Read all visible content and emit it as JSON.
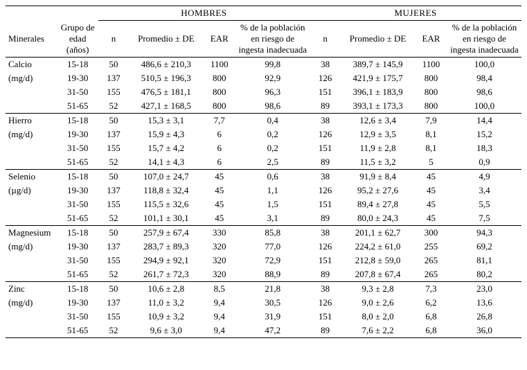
{
  "headers": {
    "mineral": "Minerales",
    "age_group": "Grupo de edad (años)",
    "men": "HOMBRES",
    "women": "MUJERES",
    "n": "n",
    "mean_sd": "Promedio ± DE",
    "ear": "EAR",
    "pct_risk": "% de la población en riesgo de ingesta inadecuada"
  },
  "minerals": [
    {
      "name": "Calcio",
      "unit": "(mg/d)",
      "rows": [
        {
          "age": "15-18",
          "m_n": "50",
          "m_mean": "486,6 ± 210,3",
          "m_ear": "1100",
          "m_pct": "99,8",
          "w_n": "38",
          "w_mean": "389,7 ± 145,9",
          "w_ear": "1100",
          "w_pct": "100,0"
        },
        {
          "age": "19-30",
          "m_n": "137",
          "m_mean": "510,5 ± 196,3",
          "m_ear": "800",
          "m_pct": "92,9",
          "w_n": "126",
          "w_mean": "421,9 ± 175,7",
          "w_ear": "800",
          "w_pct": "98,4"
        },
        {
          "age": "31-50",
          "m_n": "155",
          "m_mean": "476,5 ± 181,1",
          "m_ear": "800",
          "m_pct": "96,3",
          "w_n": "151",
          "w_mean": "396,1 ± 183,9",
          "w_ear": "800",
          "w_pct": "98,6"
        },
        {
          "age": "51-65",
          "m_n": "52",
          "m_mean": "427,1 ± 168,5",
          "m_ear": "800",
          "m_pct": "98,6",
          "w_n": "89",
          "w_mean": "393,1 ± 173,3",
          "w_ear": "800",
          "w_pct": "100,0"
        }
      ]
    },
    {
      "name": "Hierro",
      "unit": "(mg/d)",
      "rows": [
        {
          "age": "15-18",
          "m_n": "50",
          "m_mean": "15,3 ± 3,1",
          "m_ear": "7,7",
          "m_pct": "0,4",
          "w_n": "38",
          "w_mean": "12,6 ± 3,4",
          "w_ear": "7,9",
          "w_pct": "14,4"
        },
        {
          "age": "19-30",
          "m_n": "137",
          "m_mean": "15,9 ± 4,3",
          "m_ear": "6",
          "m_pct": "0,2",
          "w_n": "126",
          "w_mean": "12,9 ± 3,5",
          "w_ear": "8,1",
          "w_pct": "15,2"
        },
        {
          "age": "31-50",
          "m_n": "155",
          "m_mean": "15,7 ± 4,2",
          "m_ear": "6",
          "m_pct": "0,2",
          "w_n": "151",
          "w_mean": "11,9 ± 2,8",
          "w_ear": "8,1",
          "w_pct": "18,3"
        },
        {
          "age": "51-65",
          "m_n": "52",
          "m_mean": "14,1 ± 4,3",
          "m_ear": "6",
          "m_pct": "2,5",
          "w_n": "89",
          "w_mean": "11,5 ± 3,2",
          "w_ear": "5",
          "w_pct": "0,9"
        }
      ]
    },
    {
      "name": "Selenio",
      "unit": "(µg/d)",
      "rows": [
        {
          "age": "15-18",
          "m_n": "50",
          "m_mean": "107,0 ± 24,7",
          "m_ear": "45",
          "m_pct": "0,6",
          "w_n": "38",
          "w_mean": "91,9 ± 8,4",
          "w_ear": "45",
          "w_pct": "4,9"
        },
        {
          "age": "19-30",
          "m_n": "137",
          "m_mean": "118,8 ± 32,4",
          "m_ear": "45",
          "m_pct": "1,1",
          "w_n": "126",
          "w_mean": "95,2 ± 27,6",
          "w_ear": "45",
          "w_pct": "3,4"
        },
        {
          "age": "31-50",
          "m_n": "155",
          "m_mean": "115,5 ± 32,6",
          "m_ear": "45",
          "m_pct": "1,5",
          "w_n": "151",
          "w_mean": "89,4 ± 27,8",
          "w_ear": "45",
          "w_pct": "5,5"
        },
        {
          "age": "51-65",
          "m_n": "52",
          "m_mean": "101,1 ± 30,1",
          "m_ear": "45",
          "m_pct": "3,1",
          "w_n": "89",
          "w_mean": "80,0 ± 24,3",
          "w_ear": "45",
          "w_pct": "7,5"
        }
      ]
    },
    {
      "name": "Magnesium",
      "unit": "(mg/d)",
      "rows": [
        {
          "age": "15-18",
          "m_n": "50",
          "m_mean": "257,9 ± 67,4",
          "m_ear": "330",
          "m_pct": "85,8",
          "w_n": "38",
          "w_mean": "201,1 ± 62,7",
          "w_ear": "300",
          "w_pct": "94,3"
        },
        {
          "age": "19-30",
          "m_n": "137",
          "m_mean": "283,7 ± 89,3",
          "m_ear": "320",
          "m_pct": "77,0",
          "w_n": "126",
          "w_mean": "224,2 ± 61,0",
          "w_ear": "255",
          "w_pct": "69,2"
        },
        {
          "age": "31-50",
          "m_n": "155",
          "m_mean": "294,9 ± 92,1",
          "m_ear": "320",
          "m_pct": "72,9",
          "w_n": "151",
          "w_mean": "212,8 ± 59,0",
          "w_ear": "265",
          "w_pct": "81,1"
        },
        {
          "age": "51-65",
          "m_n": "52",
          "m_mean": "261,7 ± 72,3",
          "m_ear": "320",
          "m_pct": "88,9",
          "w_n": "89",
          "w_mean": "207,8 ± 67,4",
          "w_ear": "265",
          "w_pct": "80,2"
        }
      ]
    },
    {
      "name": "Zinc",
      "unit": "(mg/d)",
      "rows": [
        {
          "age": "15-18",
          "m_n": "50",
          "m_mean": "10,6 ± 2,8",
          "m_ear": "8,5",
          "m_pct": "21,8",
          "w_n": "38",
          "w_mean": "9,3 ± 2,8",
          "w_ear": "7,3",
          "w_pct": "23,0"
        },
        {
          "age": "19-30",
          "m_n": "137",
          "m_mean": "11,0 ± 3,2",
          "m_ear": "9,4",
          "m_pct": "30,5",
          "w_n": "126",
          "w_mean": "9,0 ± 2,6",
          "w_ear": "6,2",
          "w_pct": "13,6"
        },
        {
          "age": "31-50",
          "m_n": "155",
          "m_mean": "10,9 ± 3,2",
          "m_ear": "9,4",
          "m_pct": "31,9",
          "w_n": "151",
          "w_mean": "8,0 ± 2,0",
          "w_ear": "6,8",
          "w_pct": "26,8"
        },
        {
          "age": "51-65",
          "m_n": "52",
          "m_mean": "9,6 ± 3,0",
          "m_ear": "9,4",
          "m_pct": "47,2",
          "w_n": "89",
          "w_mean": "7,6 ± 2,2",
          "w_ear": "6,8",
          "w_pct": "36,0"
        }
      ]
    }
  ],
  "style": {
    "font_family": "Times New Roman",
    "font_size_pt": 10,
    "bg": "#ffffff",
    "fg": "#000000",
    "rule_heavy": "1.5px",
    "rule_thin": "1px"
  }
}
